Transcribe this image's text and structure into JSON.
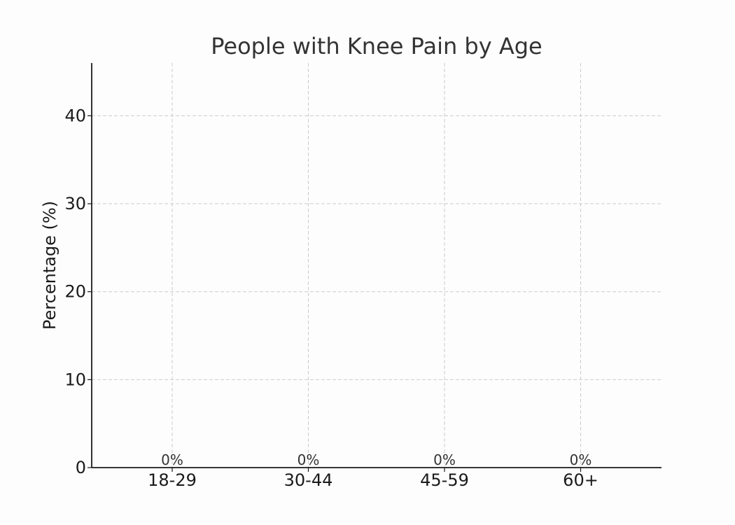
{
  "chart_data": {
    "type": "bar",
    "title": "People with Knee Pain by Age",
    "xlabel": "",
    "ylabel": "Percentage (%)",
    "categories": [
      "18-29",
      "30-44",
      "45-59",
      "60+"
    ],
    "values": [
      0,
      0,
      0,
      0
    ],
    "data_labels": [
      "0%",
      "0%",
      "0%",
      "0%"
    ],
    "ylim": [
      0,
      46
    ],
    "yticks": [
      0,
      10,
      20,
      30,
      40
    ],
    "grid": true,
    "bar_color": "#4c72b0"
  }
}
